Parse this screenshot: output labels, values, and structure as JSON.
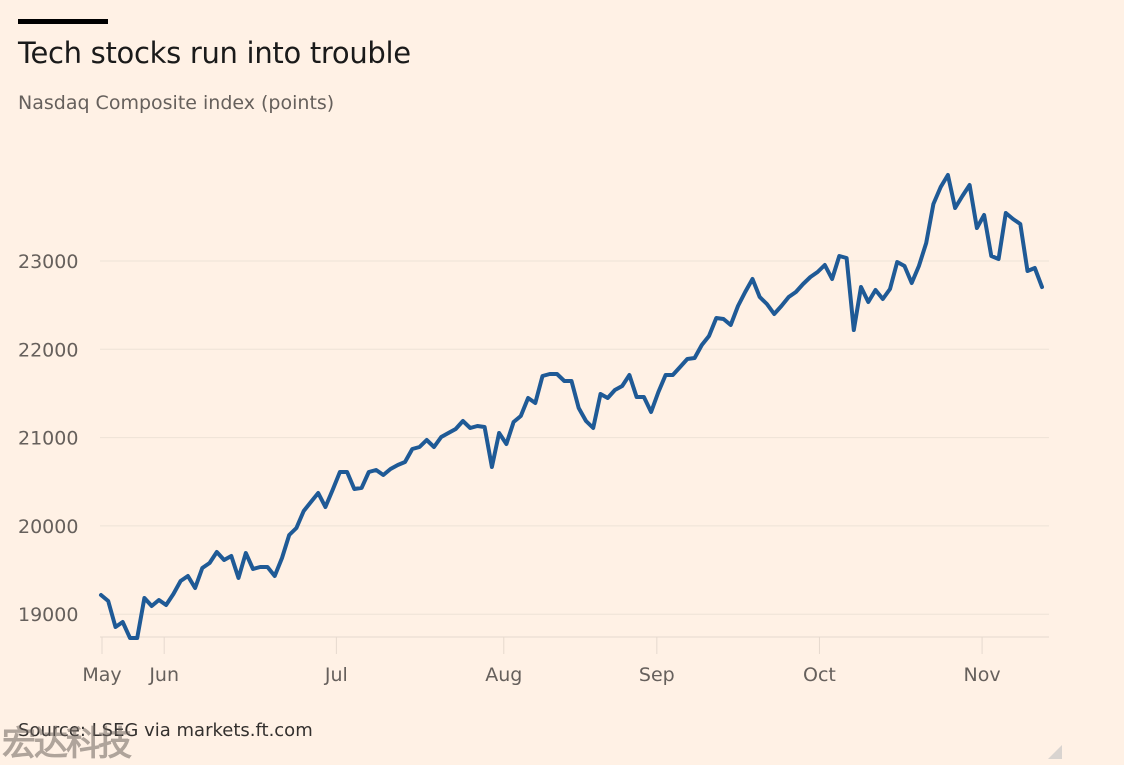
{
  "header": {
    "title": "Tech stocks run into trouble",
    "subtitle": "Nasdaq Composite index (points)"
  },
  "footer": {
    "source": "Source: LSEG via markets.ft.com",
    "watermark": "宏达科技"
  },
  "colors": {
    "background": "#fff1e5",
    "line": "#1f5a96",
    "grid": "#eee2d6",
    "axis_text": "#66605c"
  },
  "chart_data": {
    "type": "line",
    "title": "Tech stocks run into trouble",
    "subtitle": "Nasdaq Composite index (points)",
    "xlabel": "",
    "ylabel": "",
    "ylim": [
      18650,
      24000
    ],
    "yticks": [
      19000,
      20000,
      21000,
      22000,
      23000
    ],
    "ytick_labels": [
      "19000",
      "20000",
      "21000",
      "22000",
      "23000"
    ],
    "x_range_days": [
      0,
      197
    ],
    "xticks": [
      {
        "label": "May",
        "day": 0
      },
      {
        "label": "Jun",
        "day": 13
      },
      {
        "label": "Jul",
        "day": 49
      },
      {
        "label": "Aug",
        "day": 84
      },
      {
        "label": "Sep",
        "day": 116
      },
      {
        "label": "Oct",
        "day": 150
      },
      {
        "label": "Nov",
        "day": 184
      }
    ],
    "grid": true,
    "legend": "none",
    "series": [
      {
        "name": "Nasdaq Composite",
        "values": [
          19217,
          19150,
          18855,
          18912,
          18730,
          18730,
          19183,
          19093,
          19161,
          19104,
          19229,
          19376,
          19433,
          19297,
          19523,
          19580,
          19704,
          19614,
          19659,
          19410,
          19693,
          19512,
          19535,
          19535,
          19433,
          19637,
          19897,
          19976,
          20169,
          20271,
          20373,
          20214,
          20407,
          20610,
          20610,
          20418,
          20430,
          20610,
          20633,
          20577,
          20644,
          20690,
          20724,
          20871,
          20894,
          20973,
          20894,
          21007,
          21052,
          21097,
          21188,
          21109,
          21131,
          21120,
          20667,
          21052,
          20928,
          21177,
          21245,
          21449,
          21392,
          21698,
          21720,
          21720,
          21641,
          21641,
          21335,
          21188,
          21109,
          21494,
          21449,
          21539,
          21584,
          21709,
          21460,
          21460,
          21290,
          21516,
          21709,
          21709,
          21800,
          21890,
          21902,
          22049,
          22151,
          22354,
          22343,
          22275,
          22490,
          22649,
          22796,
          22592,
          22513,
          22400,
          22490,
          22592,
          22649,
          22740,
          22819,
          22875,
          22955,
          22796,
          23057,
          23034,
          22219,
          22706,
          22536,
          22672,
          22570,
          22683,
          22989,
          22943,
          22751,
          22943,
          23204,
          23646,
          23838,
          23974,
          23600,
          23736,
          23861,
          23374,
          23521,
          23057,
          23023,
          23544,
          23476,
          23419,
          22887,
          22921,
          22706
        ]
      }
    ]
  }
}
